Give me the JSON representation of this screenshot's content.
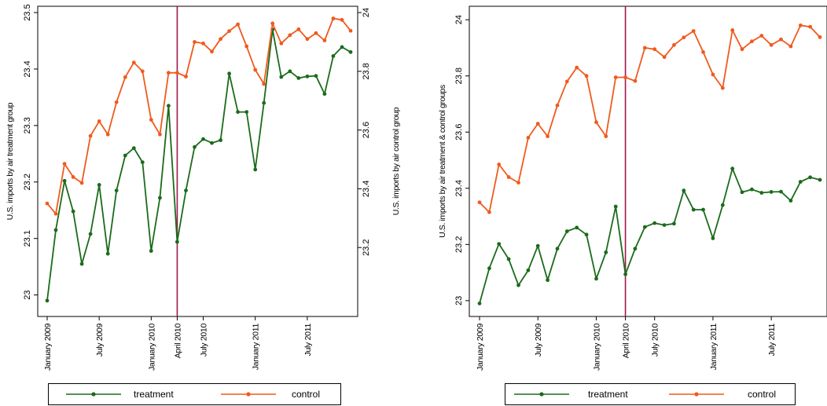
{
  "colors": {
    "treatment": "#1b6b1b",
    "control": "#f05a1e",
    "event_line": "#a0174a"
  },
  "chart_data": [
    {
      "type": "line",
      "x_axis": "monthly, January 2009 - December 2011",
      "xticks": [
        "January 2009",
        "July 2009",
        "January 2010",
        "April 2010",
        "July 2010",
        "January 2011",
        "July 2011"
      ],
      "event_line": "April 2010",
      "ylabel": "U.S. imports by air treatment group",
      "y2label": "U.S. imports by air control group",
      "ylim": [
        22.98,
        23.5
      ],
      "y2lim": [
        23.0,
        24.0
      ],
      "yticks": [
        "23",
        "23.1",
        "23.2",
        "23.3",
        "23.4",
        "23.5"
      ],
      "y2ticks": [
        "23.2",
        "23.4",
        "23.6",
        "23.8",
        "24"
      ],
      "legend": [
        "treatment",
        "control"
      ],
      "series": [
        {
          "name": "treatment",
          "axis": "left",
          "values": [
            22.99,
            23.115,
            23.202,
            23.148,
            23.055,
            23.108,
            23.195,
            23.073,
            23.185,
            23.247,
            23.26,
            23.235,
            23.078,
            23.172,
            23.335,
            23.094,
            23.185,
            23.262,
            23.276,
            23.269,
            23.274,
            23.392,
            23.324,
            23.324,
            23.222,
            23.34,
            23.47,
            23.386,
            23.396,
            23.384,
            23.387,
            23.388,
            23.356,
            23.423,
            23.439,
            23.43
          ]
        },
        {
          "name": "control",
          "axis": "right",
          "values": [
            23.35,
            23.315,
            23.485,
            23.44,
            23.42,
            23.58,
            23.63,
            23.585,
            23.695,
            23.78,
            23.83,
            23.8,
            23.635,
            23.585,
            23.795,
            23.795,
            23.782,
            23.9,
            23.895,
            23.867,
            23.91,
            23.937,
            23.96,
            23.885,
            23.805,
            23.757,
            23.963,
            23.895,
            23.923,
            23.943,
            23.91,
            23.93,
            23.905,
            23.98,
            23.975,
            23.938
          ]
        }
      ]
    },
    {
      "type": "line",
      "x_axis": "monthly, January 2009 - December 2011",
      "xticks": [
        "January 2009",
        "July 2009",
        "January 2010",
        "April 2010",
        "July 2010",
        "January 2011",
        "July 2011"
      ],
      "event_line": "April 2010",
      "ylabel": "U.S. imports by air treatment & control groups",
      "ylim": [
        22.98,
        24.02
      ],
      "yticks": [
        "23",
        "23.2",
        "23.4",
        "23.6",
        "23.8",
        "24"
      ],
      "legend": [
        "treatment",
        "control"
      ],
      "series": [
        {
          "name": "treatment",
          "axis": "left",
          "values": [
            22.99,
            23.115,
            23.202,
            23.148,
            23.055,
            23.108,
            23.195,
            23.073,
            23.185,
            23.247,
            23.26,
            23.235,
            23.078,
            23.172,
            23.335,
            23.094,
            23.185,
            23.262,
            23.276,
            23.269,
            23.274,
            23.392,
            23.324,
            23.324,
            23.222,
            23.34,
            23.47,
            23.386,
            23.396,
            23.384,
            23.387,
            23.388,
            23.356,
            23.423,
            23.439,
            23.43
          ]
        },
        {
          "name": "control",
          "axis": "left",
          "values": [
            23.35,
            23.315,
            23.485,
            23.44,
            23.42,
            23.58,
            23.63,
            23.585,
            23.695,
            23.78,
            23.83,
            23.8,
            23.635,
            23.585,
            23.795,
            23.795,
            23.782,
            23.9,
            23.895,
            23.867,
            23.91,
            23.937,
            23.96,
            23.885,
            23.805,
            23.757,
            23.963,
            23.895,
            23.923,
            23.943,
            23.91,
            23.93,
            23.905,
            23.98,
            23.975,
            23.938
          ]
        }
      ]
    }
  ]
}
